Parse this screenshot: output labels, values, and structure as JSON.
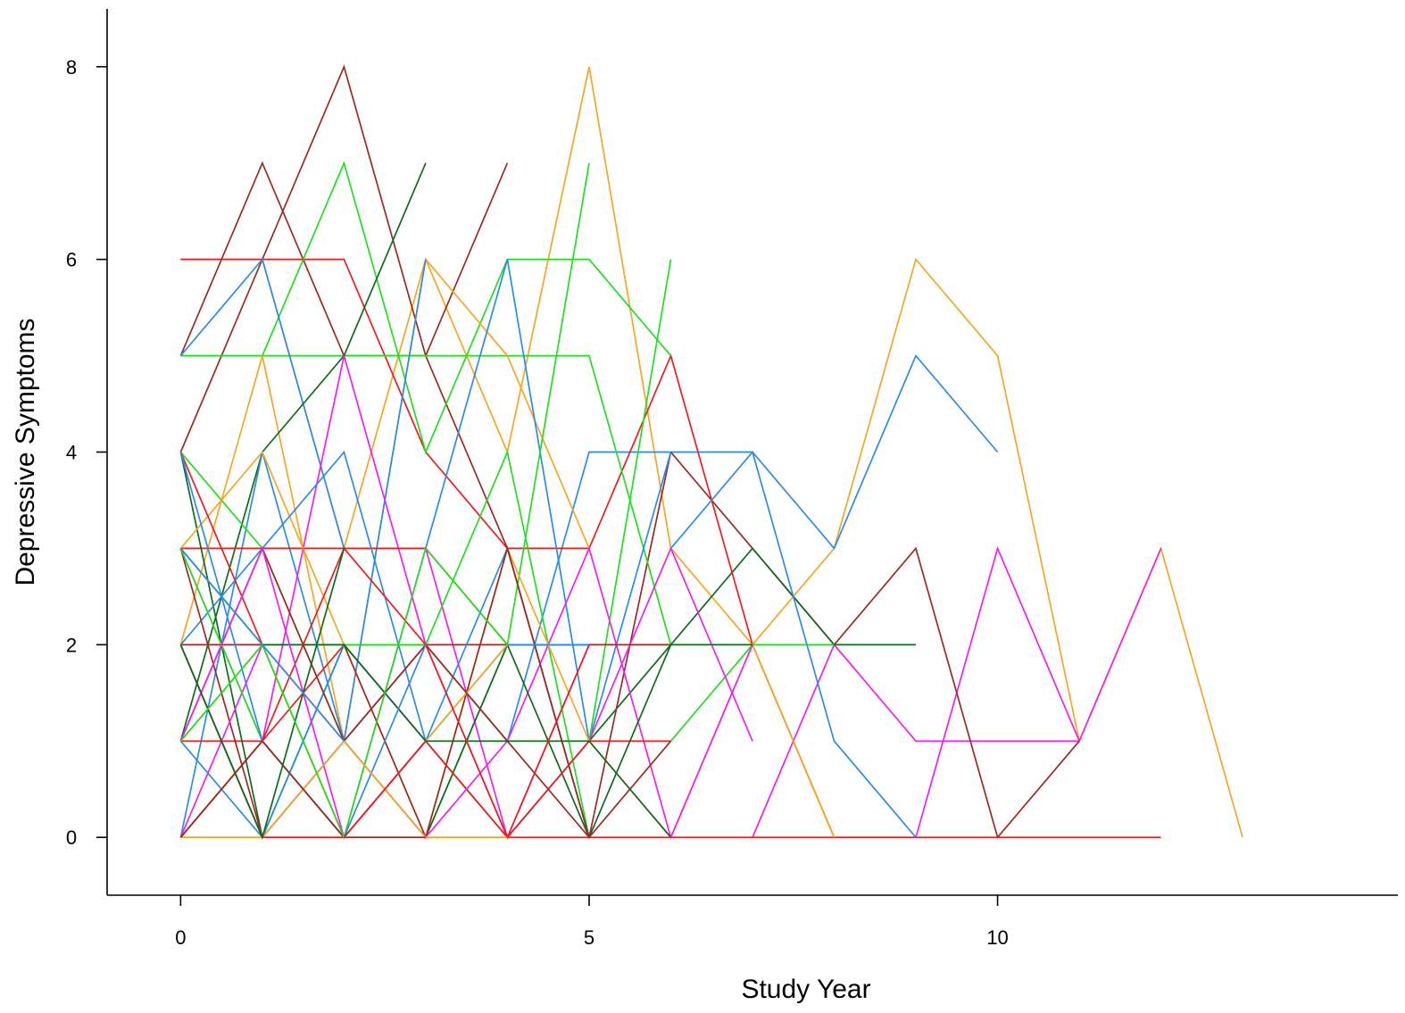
{
  "chart_data": {
    "type": "line",
    "xlabel": "Study Year",
    "ylabel": "Depressive Symptoms",
    "xlim": [
      -0.9,
      14.9
    ],
    "ylim": [
      -0.6,
      8.6
    ],
    "xticks": [
      0,
      5,
      10
    ],
    "yticks": [
      0,
      2,
      4,
      6,
      8
    ],
    "x_tick_labels": [
      "0",
      "5",
      "10"
    ],
    "y_tick_labels": [
      "0",
      "2",
      "4",
      "6",
      "8"
    ],
    "grid": false,
    "legend": "none",
    "colors": {
      "orange": "#f5a623",
      "blue": "#2b8ce8",
      "red": "#ee1c1c",
      "green": "#1ee01e",
      "darkgreen": "#0e6b1b",
      "brown": "#9b2a22",
      "magenta": "#f11ff1"
    },
    "series": [
      {
        "color": "orange",
        "x": [
          0,
          1,
          2,
          3,
          4,
          5,
          6,
          7,
          8,
          9,
          10,
          11,
          12,
          13
        ],
        "y": [
          6,
          6,
          3,
          6,
          4,
          8,
          3,
          2,
          3,
          6,
          5,
          1,
          3,
          0
        ]
      },
      {
        "color": "blue",
        "x": [
          4,
          5,
          6,
          7,
          8,
          9,
          10
        ],
        "y": [
          1,
          4,
          4,
          4,
          3,
          5,
          4
        ]
      },
      {
        "color": "magenta",
        "x": [
          7,
          8,
          9,
          10,
          11,
          12
        ],
        "y": [
          0,
          2,
          1,
          1,
          1,
          3
        ]
      },
      {
        "color": "magenta",
        "x": [
          8,
          9,
          10,
          11
        ],
        "y": [
          0,
          0,
          3,
          1
        ]
      },
      {
        "color": "brown",
        "x": [
          6,
          7,
          8,
          9,
          10,
          11
        ],
        "y": [
          4,
          3,
          2,
          3,
          0,
          1
        ]
      },
      {
        "color": "red",
        "x": [
          0,
          1,
          2,
          3,
          4,
          5,
          6,
          7,
          8,
          9,
          10,
          11,
          12
        ],
        "y": [
          0,
          0,
          0,
          0,
          0,
          0,
          0,
          0,
          0,
          0,
          0,
          0,
          0
        ]
      },
      {
        "color": "darkgreen",
        "x": [
          5,
          6,
          7,
          8,
          9
        ],
        "y": [
          1,
          2,
          3,
          2,
          2
        ]
      },
      {
        "color": "green",
        "x": [
          5,
          6,
          7,
          8
        ],
        "y": [
          1,
          1,
          2,
          2
        ]
      },
      {
        "color": "red",
        "x": [
          0,
          1,
          2,
          3,
          4,
          5,
          6,
          7,
          8
        ],
        "y": [
          6,
          6,
          6,
          4,
          3,
          3,
          5,
          2,
          0
        ]
      },
      {
        "color": "blue",
        "x": [
          6,
          7,
          8,
          9
        ],
        "y": [
          3,
          4,
          1,
          0
        ]
      },
      {
        "color": "orange",
        "x": [
          6,
          7,
          8
        ],
        "y": [
          0,
          2,
          0
        ]
      },
      {
        "color": "brown",
        "x": [
          0,
          1,
          2,
          3,
          4
        ],
        "y": [
          5,
          7,
          5,
          5,
          7
        ]
      },
      {
        "color": "brown",
        "x": [
          0,
          1,
          2,
          3,
          4,
          5,
          6
        ],
        "y": [
          4,
          6,
          8,
          5,
          3,
          0,
          4
        ]
      },
      {
        "color": "green",
        "x": [
          0,
          1,
          2,
          3,
          4,
          5,
          6
        ],
        "y": [
          5,
          5,
          7,
          4,
          6,
          6,
          5
        ]
      },
      {
        "color": "green",
        "x": [
          0,
          1,
          2,
          3,
          4,
          5,
          6
        ],
        "y": [
          5,
          5,
          5,
          5,
          5,
          5,
          2
        ]
      },
      {
        "color": "orange",
        "x": [
          0,
          1,
          2,
          3,
          4,
          5
        ],
        "y": [
          2,
          5,
          1,
          6,
          5,
          3
        ]
      },
      {
        "color": "blue",
        "x": [
          0,
          1,
          2,
          3,
          4,
          5,
          6
        ],
        "y": [
          5,
          6,
          3,
          3,
          6,
          1,
          4
        ]
      },
      {
        "color": "darkgreen",
        "x": [
          0,
          1,
          2,
          3
        ],
        "y": [
          1,
          4,
          5,
          7
        ]
      },
      {
        "color": "green",
        "x": [
          3,
          4,
          5
        ],
        "y": [
          0,
          2,
          7
        ]
      },
      {
        "color": "blue",
        "x": [
          0,
          1,
          2,
          3
        ],
        "y": [
          0,
          4,
          1,
          6
        ]
      },
      {
        "color": "green",
        "x": [
          4,
          5,
          6
        ],
        "y": [
          0,
          1,
          6
        ]
      },
      {
        "color": "magenta",
        "x": [
          0,
          1,
          2,
          3,
          4,
          5,
          6,
          7
        ],
        "y": [
          3,
          1,
          5,
          2,
          1,
          3,
          0,
          2
        ]
      },
      {
        "color": "magenta",
        "x": [
          1,
          2,
          3,
          4,
          5,
          6,
          7
        ],
        "y": [
          1,
          0,
          3,
          0,
          1,
          3,
          1
        ]
      },
      {
        "color": "red",
        "x": [
          0,
          1,
          2,
          3,
          4,
          5,
          6
        ],
        "y": [
          1,
          1,
          2,
          1,
          1,
          1,
          1
        ]
      },
      {
        "color": "red",
        "x": [
          0,
          1,
          2,
          3,
          4,
          5
        ],
        "y": [
          3,
          3,
          3,
          3,
          2,
          2
        ]
      },
      {
        "color": "brown",
        "x": [
          0,
          1,
          2,
          3,
          4,
          5,
          6
        ],
        "y": [
          2,
          2,
          2,
          2,
          2,
          2,
          2
        ]
      },
      {
        "color": "darkgreen",
        "x": [
          0,
          1,
          2,
          3,
          4,
          5,
          6,
          7
        ],
        "y": [
          4,
          0,
          1,
          0,
          2,
          0,
          2,
          2
        ]
      },
      {
        "color": "green",
        "x": [
          0,
          1,
          2,
          3,
          4,
          5
        ],
        "y": [
          4,
          3,
          1,
          2,
          4,
          0
        ]
      },
      {
        "color": "orange",
        "x": [
          0,
          1,
          2,
          3,
          4,
          5,
          6
        ],
        "y": [
          3,
          4,
          2,
          0,
          3,
          1,
          0
        ]
      },
      {
        "color": "blue",
        "x": [
          0,
          1,
          2,
          3,
          4,
          5
        ],
        "y": [
          2,
          3,
          4,
          1,
          3,
          0
        ]
      },
      {
        "color": "brown",
        "x": [
          0,
          1,
          2,
          3,
          4,
          5,
          6
        ],
        "y": [
          3,
          0,
          2,
          0,
          3,
          0,
          1
        ]
      },
      {
        "color": "magenta",
        "x": [
          0,
          1,
          2,
          3,
          4,
          5
        ],
        "y": [
          0,
          2,
          1,
          2,
          0,
          2
        ]
      },
      {
        "color": "darkgreen",
        "x": [
          0,
          1,
          2,
          3,
          4
        ],
        "y": [
          0,
          1,
          0,
          1,
          0
        ]
      },
      {
        "color": "red",
        "x": [
          0,
          1,
          2,
          3,
          4,
          5
        ],
        "y": [
          4,
          2,
          0,
          1,
          0,
          1
        ]
      },
      {
        "color": "green",
        "x": [
          0,
          1,
          2,
          3,
          4
        ],
        "y": [
          2,
          0,
          2,
          2,
          1
        ]
      },
      {
        "color": "blue",
        "x": [
          0,
          1,
          2,
          3,
          4,
          5
        ],
        "y": [
          1,
          0,
          2,
          1,
          2,
          2
        ]
      },
      {
        "color": "orange",
        "x": [
          0,
          1,
          2,
          3,
          4
        ],
        "y": [
          1,
          2,
          0,
          1,
          2
        ]
      },
      {
        "color": "magenta",
        "x": [
          0,
          1,
          2,
          3,
          4
        ],
        "y": [
          2,
          0,
          1,
          0,
          1
        ]
      },
      {
        "color": "brown",
        "x": [
          0,
          1,
          2,
          3,
          4,
          5
        ],
        "y": [
          1,
          3,
          1,
          2,
          1,
          0
        ]
      },
      {
        "color": "darkgreen",
        "x": [
          0,
          1,
          2,
          3,
          4,
          5,
          6
        ],
        "y": [
          3,
          2,
          2,
          1,
          1,
          1,
          0
        ]
      },
      {
        "color": "red",
        "x": [
          0,
          1,
          2,
          3,
          4,
          5
        ],
        "y": [
          0,
          1,
          3,
          2,
          0,
          2
        ]
      },
      {
        "color": "green",
        "x": [
          0,
          1,
          2,
          3,
          4
        ],
        "y": [
          3,
          1,
          0,
          3,
          2
        ]
      },
      {
        "color": "blue",
        "x": [
          0,
          1,
          2,
          3
        ],
        "y": [
          4,
          1,
          0,
          2
        ]
      },
      {
        "color": "magenta",
        "x": [
          0,
          1,
          2,
          3
        ],
        "y": [
          1,
          3,
          0,
          1
        ]
      },
      {
        "color": "orange",
        "x": [
          0,
          1,
          2,
          3,
          4
        ],
        "y": [
          0,
          0,
          1,
          0,
          0
        ]
      },
      {
        "color": "brown",
        "x": [
          0,
          1,
          2,
          3
        ],
        "y": [
          0,
          1,
          0,
          0
        ]
      },
      {
        "color": "red",
        "x": [
          0,
          1,
          2,
          3
        ],
        "y": [
          2,
          0,
          0,
          1
        ]
      },
      {
        "color": "darkgreen",
        "x": [
          0,
          1,
          2
        ],
        "y": [
          2,
          0,
          3
        ]
      },
      {
        "color": "green",
        "x": [
          0,
          1,
          2
        ],
        "y": [
          1,
          2,
          0
        ]
      },
      {
        "color": "blue",
        "x": [
          0,
          1,
          2
        ],
        "y": [
          3,
          2,
          1
        ]
      }
    ]
  }
}
